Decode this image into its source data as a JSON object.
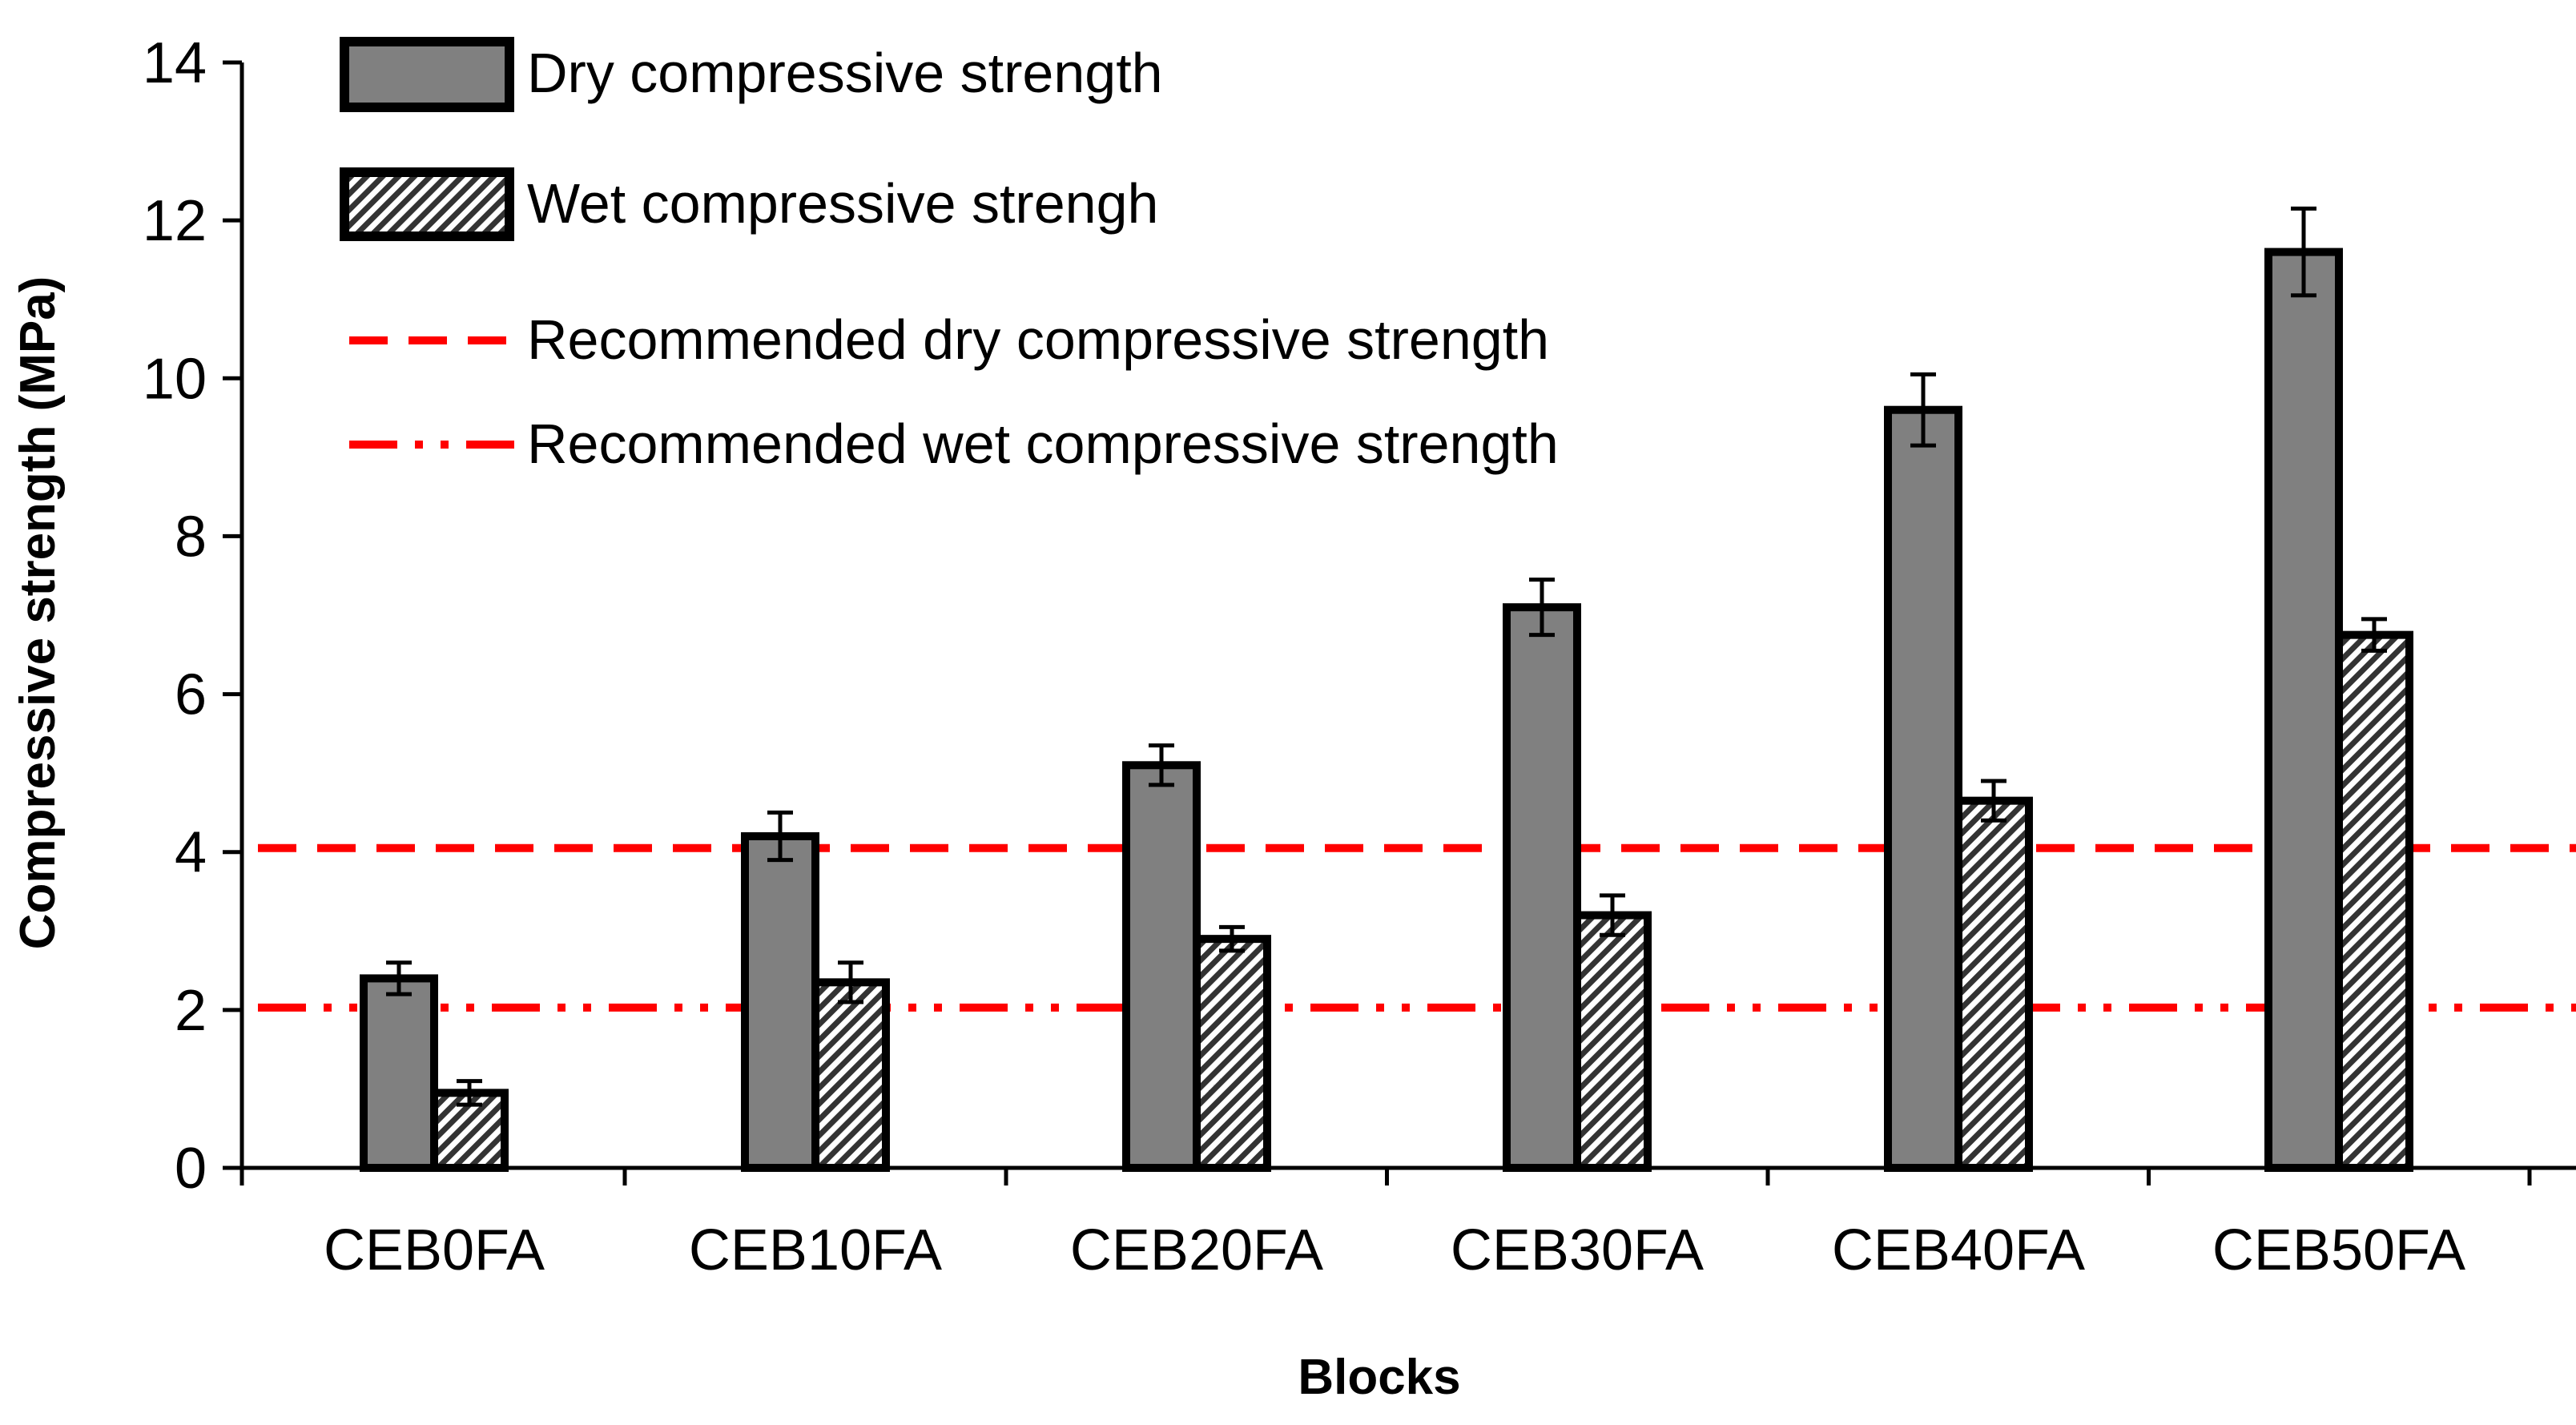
{
  "chart_data": {
    "type": "bar",
    "xlabel": "Blocks",
    "ylabel": "Compressive strength (MPa)",
    "ylim": [
      0,
      14
    ],
    "yticks": [
      "0",
      "2",
      "4",
      "6",
      "8",
      "10",
      "12",
      "14"
    ],
    "grid": false,
    "categories": [
      "CEB0FA",
      "CEB10FA",
      "CEB20FA",
      "CEB30FA",
      "CEB40FA",
      "CEB50FA"
    ],
    "series": [
      {
        "name": "Dry compressive strength",
        "pattern": "solid",
        "color": "#808080",
        "values": [
          2.4,
          4.2,
          5.1,
          7.1,
          9.6,
          11.6
        ],
        "errors": [
          0.2,
          0.3,
          0.25,
          0.35,
          0.45,
          0.55
        ]
      },
      {
        "name": "Wet compressive strengh",
        "pattern": "diagonal-hatch",
        "color": "#ffffff",
        "values": [
          0.95,
          2.35,
          2.9,
          3.2,
          4.65,
          6.75
        ],
        "errors": [
          0.15,
          0.25,
          0.15,
          0.25,
          0.25,
          0.2
        ]
      }
    ],
    "reference_lines": [
      {
        "name": "Recommended dry compressive strength",
        "value": 4.05,
        "style": "dashed",
        "color": "#ff0000"
      },
      {
        "name": "Recommended wet compressive strength",
        "value": 2.03,
        "style": "dash-dot-dot",
        "color": "#ff0000"
      }
    ],
    "legend_position": "top-left"
  }
}
